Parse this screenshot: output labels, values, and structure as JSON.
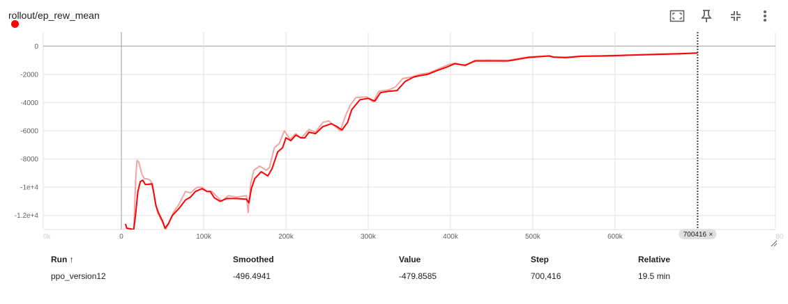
{
  "card": {
    "title": "rollout/ep_rew_mean"
  },
  "toolbar": {
    "icons": [
      "fit-domain-icon",
      "pin-icon",
      "collapse-icon",
      "more-vert-icon"
    ]
  },
  "colors": {
    "smoothed": "#ff0000",
    "raw": "#f4a3a3",
    "grid": "#e0e0e0",
    "axis": "#9e9e9e",
    "cursor": "#424242",
    "badge": "#e0e0e0"
  },
  "chart_data": {
    "type": "line",
    "title": "rollout/ep_rew_mean",
    "xlabel": "",
    "ylabel": "",
    "xlim": [
      -95000,
      795000
    ],
    "ylim": [
      -13000,
      1000
    ],
    "grid": true,
    "x_ticks": [
      0,
      100000,
      200000,
      300000,
      400000,
      500000,
      600000
    ],
    "x_tick_labels": [
      "0",
      "100k",
      "200k",
      "300k",
      "400k",
      "500k",
      "600k"
    ],
    "x_tick_labels_dim": [
      "0k",
      "80"
    ],
    "y_ticks": [
      0,
      -2000,
      -4000,
      -6000,
      -8000,
      -10000,
      -12000
    ],
    "y_tick_labels": [
      "0",
      "-2000",
      "-4000",
      "-6000",
      "-8000",
      "-1e+4",
      "-1.2e+4"
    ],
    "cursor_step": 700416,
    "cursor_label": "700416",
    "series": [
      {
        "name": "ppo_version12",
        "smoothed_xy": [
          [
            5000,
            -12600
          ],
          [
            6500,
            -12900
          ],
          [
            15000,
            -13000
          ],
          [
            17500,
            -11800
          ],
          [
            20000,
            -10300
          ],
          [
            23000,
            -9600
          ],
          [
            26000,
            -9500
          ],
          [
            29000,
            -9800
          ],
          [
            32000,
            -9800
          ],
          [
            37000,
            -9750
          ],
          [
            39000,
            -10300
          ],
          [
            42000,
            -11300
          ],
          [
            45000,
            -11800
          ],
          [
            50000,
            -12400
          ],
          [
            53000,
            -12900
          ],
          [
            57000,
            -12600
          ],
          [
            62000,
            -12000
          ],
          [
            70000,
            -11500
          ],
          [
            78000,
            -10900
          ],
          [
            84000,
            -10700
          ],
          [
            90000,
            -10300
          ],
          [
            98000,
            -10100
          ],
          [
            104000,
            -10300
          ],
          [
            108000,
            -10300
          ],
          [
            113000,
            -10750
          ],
          [
            120000,
            -11000
          ],
          [
            128000,
            -10800
          ],
          [
            140000,
            -10800
          ],
          [
            152000,
            -10850
          ],
          [
            155000,
            -11100
          ],
          [
            158000,
            -10100
          ],
          [
            162000,
            -9400
          ],
          [
            170000,
            -8900
          ],
          [
            178000,
            -9200
          ],
          [
            183000,
            -8700
          ],
          [
            190000,
            -7500
          ],
          [
            196000,
            -7200
          ],
          [
            200000,
            -6500
          ],
          [
            206000,
            -6700
          ],
          [
            212000,
            -6300
          ],
          [
            218000,
            -6500
          ],
          [
            223000,
            -6500
          ],
          [
            228000,
            -6100
          ],
          [
            236000,
            -6200
          ],
          [
            245000,
            -5700
          ],
          [
            255000,
            -5500
          ],
          [
            262000,
            -5700
          ],
          [
            268000,
            -5950
          ],
          [
            275000,
            -5400
          ],
          [
            280000,
            -4500
          ],
          [
            290000,
            -3800
          ],
          [
            300000,
            -3700
          ],
          [
            308000,
            -3900
          ],
          [
            315000,
            -3300
          ],
          [
            325000,
            -3200
          ],
          [
            335000,
            -3150
          ],
          [
            345000,
            -2500
          ],
          [
            355000,
            -2200
          ],
          [
            362000,
            -2100
          ],
          [
            372000,
            -2000
          ],
          [
            385000,
            -1700
          ],
          [
            395000,
            -1500
          ],
          [
            405000,
            -1250
          ],
          [
            418000,
            -1350
          ],
          [
            430000,
            -1050
          ],
          [
            445000,
            -1050
          ],
          [
            470000,
            -1050
          ],
          [
            495000,
            -800
          ],
          [
            520000,
            -700
          ],
          [
            525000,
            -780
          ],
          [
            540000,
            -820
          ],
          [
            560000,
            -720
          ],
          [
            585000,
            -700
          ],
          [
            620000,
            -640
          ],
          [
            650000,
            -590
          ],
          [
            680000,
            -540
          ],
          [
            700416,
            -496
          ]
        ],
        "raw_xy": [
          [
            5000,
            -12600
          ],
          [
            6500,
            -12900
          ],
          [
            15000,
            -13000
          ],
          [
            17500,
            -9200
          ],
          [
            19000,
            -8100
          ],
          [
            21000,
            -8200
          ],
          [
            25000,
            -9100
          ],
          [
            28000,
            -9400
          ],
          [
            31000,
            -9400
          ],
          [
            35000,
            -9500
          ],
          [
            38000,
            -9800
          ],
          [
            41000,
            -11000
          ],
          [
            44000,
            -11800
          ],
          [
            50000,
            -12500
          ],
          [
            54000,
            -13000
          ],
          [
            58000,
            -12500
          ],
          [
            63000,
            -11800
          ],
          [
            70000,
            -11200
          ],
          [
            78000,
            -10300
          ],
          [
            84000,
            -10400
          ],
          [
            92000,
            -10000
          ],
          [
            98000,
            -10000
          ],
          [
            104000,
            -10300
          ],
          [
            110000,
            -10300
          ],
          [
            115000,
            -10600
          ],
          [
            122000,
            -11000
          ],
          [
            130000,
            -10600
          ],
          [
            140000,
            -10700
          ],
          [
            152000,
            -10600
          ],
          [
            154000,
            -11800
          ],
          [
            157000,
            -9800
          ],
          [
            161000,
            -8800
          ],
          [
            168000,
            -8500
          ],
          [
            176000,
            -8800
          ],
          [
            180000,
            -8600
          ],
          [
            186000,
            -7200
          ],
          [
            192000,
            -6900
          ],
          [
            198000,
            -6000
          ],
          [
            205000,
            -6600
          ],
          [
            212000,
            -6200
          ],
          [
            218000,
            -6500
          ],
          [
            222000,
            -6300
          ],
          [
            228000,
            -5900
          ],
          [
            236000,
            -6100
          ],
          [
            245000,
            -5400
          ],
          [
            252000,
            -5300
          ],
          [
            260000,
            -5700
          ],
          [
            266000,
            -6000
          ],
          [
            272000,
            -5000
          ],
          [
            278000,
            -4200
          ],
          [
            285000,
            -3650
          ],
          [
            298000,
            -3600
          ],
          [
            306000,
            -3950
          ],
          [
            313000,
            -3200
          ],
          [
            325000,
            -3100
          ],
          [
            333000,
            -2900
          ],
          [
            342000,
            -2300
          ],
          [
            352000,
            -2200
          ],
          [
            362000,
            -2000
          ],
          [
            374000,
            -1900
          ],
          [
            386000,
            -1600
          ],
          [
            398000,
            -1300
          ],
          [
            406000,
            -1200
          ],
          [
            418000,
            -1400
          ],
          [
            430000,
            -1000
          ],
          [
            445000,
            -980
          ],
          [
            470000,
            -1000
          ],
          [
            495000,
            -760
          ],
          [
            520000,
            -680
          ],
          [
            525000,
            -760
          ],
          [
            540000,
            -780
          ],
          [
            560000,
            -700
          ],
          [
            585000,
            -680
          ],
          [
            620000,
            -620
          ],
          [
            650000,
            -570
          ],
          [
            680000,
            -520
          ],
          [
            700416,
            -480
          ]
        ]
      }
    ]
  },
  "table": {
    "headers": {
      "run": "Run ↑",
      "smoothed": "Smoothed",
      "value": "Value",
      "step": "Step",
      "relative": "Relative"
    },
    "rows": [
      {
        "run": "ppo_version12",
        "smoothed": "-496.4941",
        "value": "-479.8585",
        "step": "700,416",
        "relative": "19.5 min",
        "color": "#ff0000"
      }
    ]
  }
}
